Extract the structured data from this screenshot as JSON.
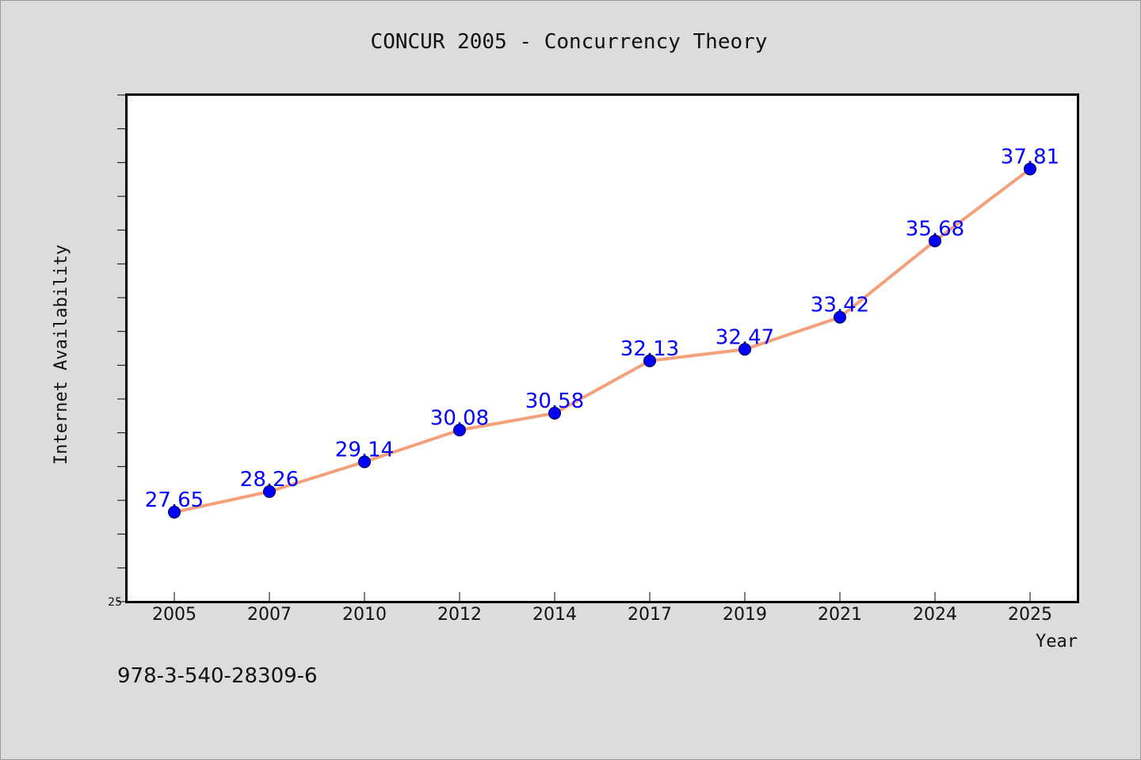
{
  "chart_data": {
    "type": "line",
    "title": "CONCUR 2005 - Concurrency Theory",
    "xlabel": "Year",
    "ylabel": "Internet Availability",
    "categories": [
      "2005",
      "2007",
      "2010",
      "2012",
      "2014",
      "2017",
      "2019",
      "2021",
      "2024",
      "2025"
    ],
    "series": [
      {
        "values": [
          27.65,
          28.26,
          29.14,
          30.08,
          30.58,
          32.13,
          32.47,
          33.42,
          35.68,
          37.81
        ],
        "data_labels": [
          "27.65",
          "28.26",
          "29.14",
          "30.08",
          "30.58",
          "32.13",
          "32.47",
          "33.42",
          "35.68",
          "37.81"
        ]
      }
    ],
    "ylim": [
      25,
      40
    ],
    "y_tick_labels": [
      "25"
    ],
    "grid": false,
    "legend": "none",
    "colors": {
      "line": "#f4a07a",
      "marker": "#0000ff",
      "data_label": "#0000ff",
      "plot_background": "#ffffff",
      "figure_background": "#dcdcdc"
    }
  },
  "footnote": "978-3-540-28309-6"
}
